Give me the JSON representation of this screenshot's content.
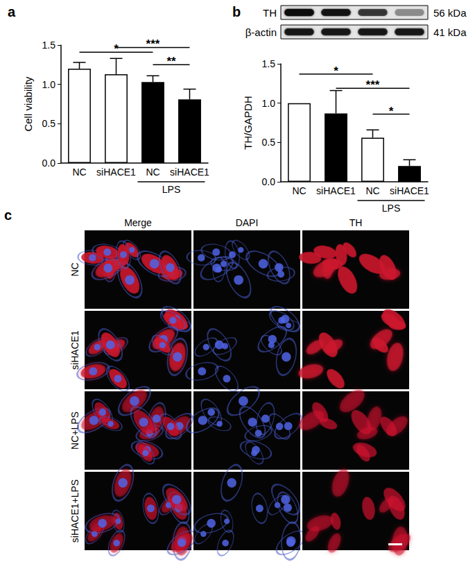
{
  "chart_data": [
    {
      "type": "bar",
      "title": "a",
      "ylabel": "Cell viability",
      "categories": [
        "NC",
        "siHACE1",
        "NC",
        "siHACE1"
      ],
      "values": [
        1.2,
        1.13,
        1.03,
        0.81
      ],
      "errors": [
        0.08,
        0.2,
        0.08,
        0.13
      ],
      "colors": [
        "#ffffff",
        "#ffffff",
        "#000000",
        "#000000"
      ],
      "ylim": [
        0,
        1.5
      ],
      "yticks": [
        {
          "value": 0,
          "label": "0.0"
        },
        {
          "value": 0.5,
          "label": "0.5"
        },
        {
          "value": 1,
          "label": "1.0"
        },
        {
          "value": 1.5,
          "label": "1.5"
        }
      ],
      "grid": false,
      "group_label": {
        "label": "LPS",
        "from": 2,
        "to": 3
      },
      "significance": [
        {
          "from": 0,
          "to": 2,
          "y": 1.41,
          "label": "*"
        },
        {
          "from": 1,
          "to": 3,
          "y": 1.47,
          "label": "***"
        },
        {
          "from": 2,
          "to": 3,
          "y": 1.25,
          "label": "**"
        }
      ]
    },
    {
      "type": "bar",
      "title": "b",
      "ylabel": "TH/GAPDH",
      "categories": [
        "NC",
        "siHACE1",
        "NC",
        "siHACE1"
      ],
      "values": [
        1.0,
        0.87,
        0.56,
        0.2
      ],
      "errors": [
        0,
        0.29,
        0.1,
        0.08
      ],
      "colors": [
        "#ffffff",
        "#000000",
        "#ffffff",
        "#000000"
      ],
      "ylim": [
        0,
        1.5
      ],
      "yticks": [
        {
          "value": 0,
          "label": "0.0"
        },
        {
          "value": 0.5,
          "label": "0.5"
        },
        {
          "value": 1,
          "label": "1.0"
        },
        {
          "value": 1.5,
          "label": "1.5"
        }
      ],
      "grid": false,
      "group_label": {
        "label": "LPS",
        "from": 2,
        "to": 3
      },
      "significance": [
        {
          "from": 0,
          "to": 2,
          "y": 1.37,
          "label": "*"
        },
        {
          "from": 1,
          "to": 3,
          "y": 1.19,
          "label": "***"
        },
        {
          "from": 2,
          "to": 3,
          "y": 0.86,
          "label": "*"
        }
      ]
    }
  ],
  "blot": {
    "rows": [
      {
        "label": "TH",
        "size": "56 kDa"
      },
      {
        "label": "β-actin",
        "size": "41 kDa"
      }
    ]
  },
  "images": {
    "title": "c",
    "columns": [
      "Merge",
      "DAPI",
      "TH"
    ],
    "rows": [
      "NC",
      "siHACE1",
      "NC+LPS",
      "siHACE1+LPS"
    ]
  }
}
